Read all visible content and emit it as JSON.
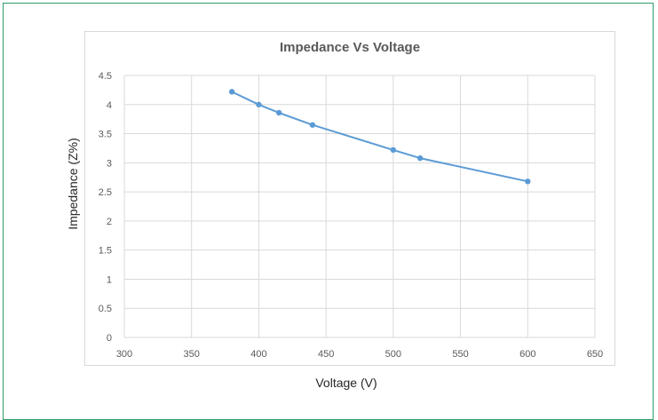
{
  "chart_data": {
    "type": "line",
    "title": "Impedance Vs Voltage",
    "xlabel": "Voltage (V)",
    "ylabel": "Impedance (Z%)",
    "xlim": [
      300,
      650
    ],
    "ylim": [
      0,
      4.5
    ],
    "xticks": [
      300,
      350,
      400,
      450,
      500,
      550,
      600,
      650
    ],
    "yticks": [
      0,
      0.5,
      1,
      1.5,
      2,
      2.5,
      3,
      3.5,
      4,
      4.5
    ],
    "grid": true,
    "legend": "none",
    "series": [
      {
        "color": "#5b9bd5",
        "x": [
          380,
          400,
          415,
          440,
          500,
          520,
          600
        ],
        "y": [
          4.22,
          4.0,
          3.86,
          3.65,
          3.22,
          3.08,
          2.68
        ]
      }
    ]
  },
  "colors": {
    "frame_border": "#2e9e6b",
    "gridline": "#d9d9d9",
    "series_line": "#5b9bd5"
  }
}
